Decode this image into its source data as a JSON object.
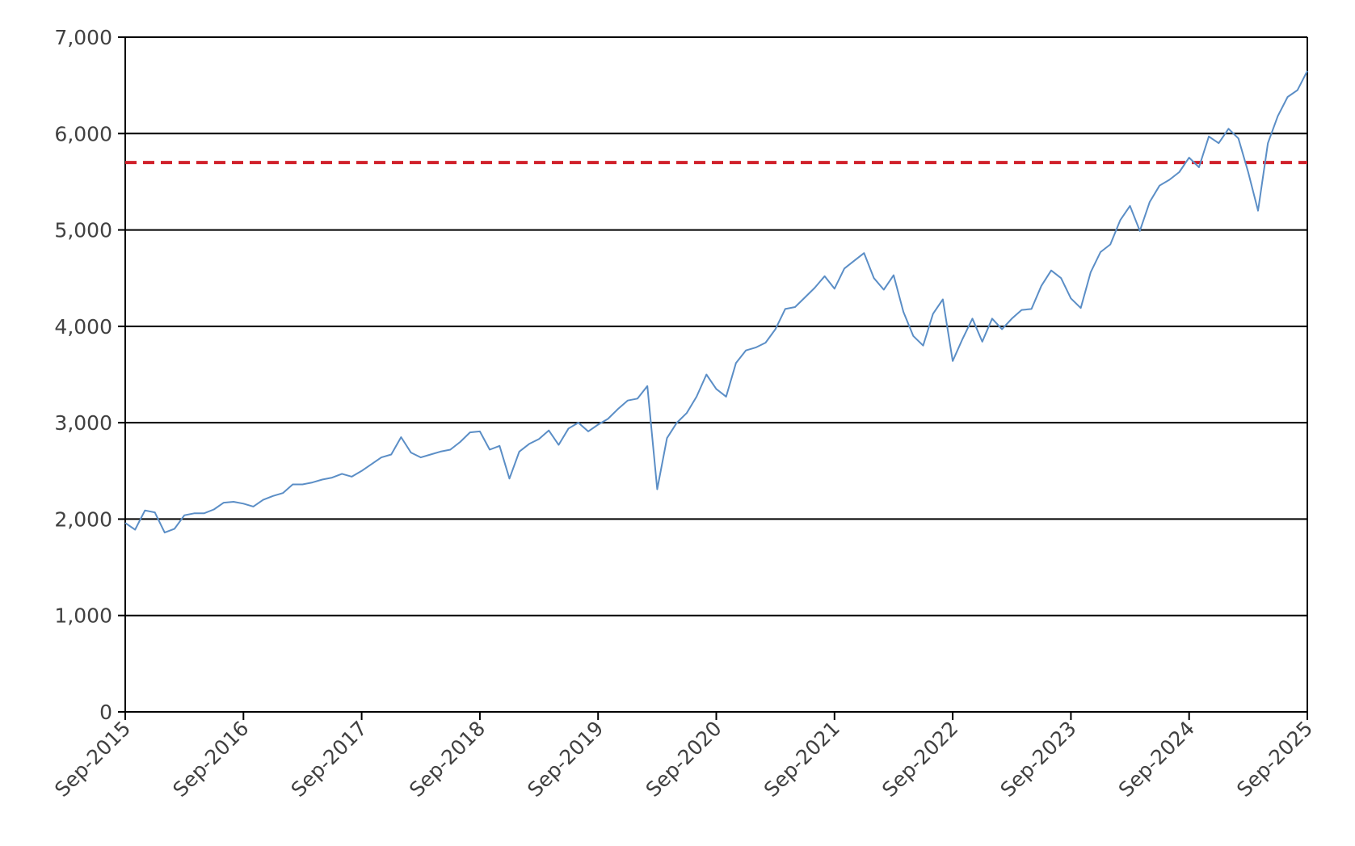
{
  "chart_data": {
    "type": "line",
    "title": "",
    "xlabel": "",
    "ylabel": "",
    "ylim": [
      0,
      7000
    ],
    "xlim": [
      "2015-09",
      "2025-09"
    ],
    "y_ticks": [
      0,
      1000,
      2000,
      3000,
      4000,
      5000,
      6000,
      7000
    ],
    "y_tick_labels": [
      "0",
      "1,000",
      "2,000",
      "3,000",
      "4,000",
      "5,000",
      "6,000",
      "7,000"
    ],
    "x_ticks": [
      "2015-09",
      "2016-09",
      "2017-09",
      "2018-09",
      "2019-09",
      "2020-09",
      "2021-09",
      "2022-09",
      "2023-09",
      "2024-09",
      "2025-09"
    ],
    "x_tick_labels": [
      "Sep-2015",
      "Sep-2016",
      "Sep-2017",
      "Sep-2018",
      "Sep-2019",
      "Sep-2020",
      "Sep-2021",
      "Sep-2022",
      "Sep-2023",
      "Sep-2024",
      "Sep-2025"
    ],
    "grid": "horizontal",
    "legend": "none",
    "series": [
      {
        "color": "#5b8ec6",
        "x": [
          "2015-09",
          "2015-10",
          "2015-11",
          "2015-12",
          "2016-01",
          "2016-02",
          "2016-03",
          "2016-04",
          "2016-05",
          "2016-06",
          "2016-07",
          "2016-08",
          "2016-09",
          "2016-10",
          "2016-11",
          "2016-12",
          "2017-01",
          "2017-02",
          "2017-03",
          "2017-04",
          "2017-05",
          "2017-06",
          "2017-07",
          "2017-08",
          "2017-09",
          "2017-10",
          "2017-11",
          "2017-12",
          "2018-01",
          "2018-02",
          "2018-03",
          "2018-04",
          "2018-05",
          "2018-06",
          "2018-07",
          "2018-08",
          "2018-09",
          "2018-10",
          "2018-11",
          "2018-12",
          "2019-01",
          "2019-02",
          "2019-03",
          "2019-04",
          "2019-05",
          "2019-06",
          "2019-07",
          "2019-08",
          "2019-09",
          "2019-10",
          "2019-11",
          "2019-12",
          "2020-01",
          "2020-02",
          "2020-03",
          "2020-04",
          "2020-05",
          "2020-06",
          "2020-07",
          "2020-08",
          "2020-09",
          "2020-10",
          "2020-11",
          "2020-12",
          "2021-01",
          "2021-02",
          "2021-03",
          "2021-04",
          "2021-05",
          "2021-06",
          "2021-07",
          "2021-08",
          "2021-09",
          "2021-10",
          "2021-11",
          "2021-12",
          "2022-01",
          "2022-02",
          "2022-03",
          "2022-04",
          "2022-05",
          "2022-06",
          "2022-07",
          "2022-08",
          "2022-09",
          "2022-10",
          "2022-11",
          "2022-12",
          "2023-01",
          "2023-02",
          "2023-03",
          "2023-04",
          "2023-05",
          "2023-06",
          "2023-07",
          "2023-08",
          "2023-09",
          "2023-10",
          "2023-11",
          "2023-12",
          "2024-01",
          "2024-02",
          "2024-03",
          "2024-04",
          "2024-05",
          "2024-06",
          "2024-07",
          "2024-08",
          "2024-09",
          "2024-10",
          "2024-11",
          "2024-12",
          "2025-01",
          "2025-02",
          "2025-03",
          "2025-04",
          "2025-05",
          "2025-06",
          "2025-07",
          "2025-08",
          "2025-09"
        ],
        "values": [
          1960,
          1890,
          2090,
          2070,
          1860,
          1900,
          2040,
          2060,
          2060,
          2100,
          2170,
          2180,
          2160,
          2130,
          2200,
          2240,
          2270,
          2360,
          2360,
          2380,
          2410,
          2430,
          2470,
          2440,
          2500,
          2570,
          2640,
          2670,
          2850,
          2690,
          2640,
          2670,
          2700,
          2720,
          2800,
          2900,
          2910,
          2720,
          2760,
          2420,
          2700,
          2780,
          2830,
          2920,
          2770,
          2940,
          3000,
          2910,
          2980,
          3040,
          3140,
          3230,
          3250,
          3380,
          2310,
          2840,
          3000,
          3100,
          3270,
          3500,
          3350,
          3270,
          3620,
          3750,
          3780,
          3830,
          3970,
          4180,
          4200,
          4300,
          4400,
          4520,
          4390,
          4600,
          4680,
          4760,
          4500,
          4380,
          4530,
          4150,
          3900,
          3800,
          4130,
          4280,
          3640,
          3870,
          4080,
          3840,
          4080,
          3970,
          4080,
          4170,
          4180,
          4420,
          4580,
          4500,
          4290,
          4190,
          4560,
          4770,
          4850,
          5100,
          5250,
          4990,
          5290,
          5460,
          5520,
          5600,
          5750,
          5650,
          5970,
          5900,
          6050,
          5950,
          5600,
          5200,
          5900,
          6180,
          6380,
          6450,
          6650
        ]
      }
    ],
    "reference_lines": [
      {
        "type": "horizontal",
        "y": 5700,
        "color": "#d0202a",
        "style": "dashed"
      }
    ]
  }
}
